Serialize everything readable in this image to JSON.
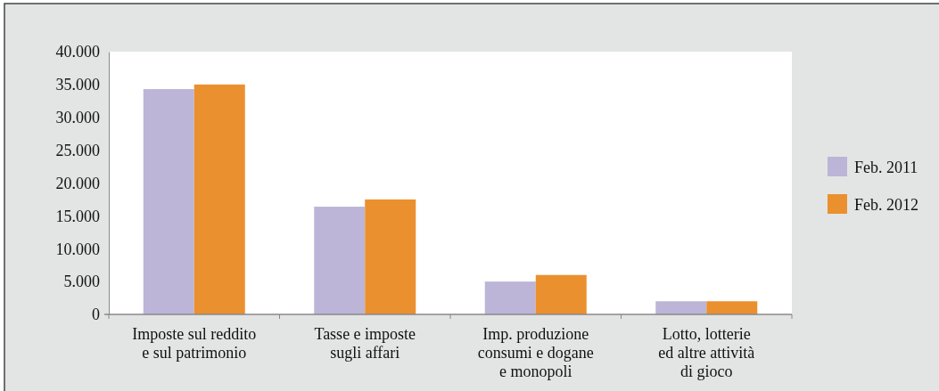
{
  "chart_data": {
    "type": "bar",
    "categories": [
      "Imposte sul reddito\ne sul patrimonio",
      "Tasse e imposte\nsugli affari",
      "Imp. produzione\nconsumi e dogane\ne monopoli",
      "Lotto, lotterie\ned altre attività\ndi gioco"
    ],
    "series": [
      {
        "name": "Feb. 2011",
        "color": "#bcb5d7",
        "values": [
          34300,
          16400,
          5000,
          2000
        ]
      },
      {
        "name": "Feb. 2012",
        "color": "#eb902e",
        "values": [
          35000,
          17500,
          6000,
          2000
        ]
      }
    ],
    "ylim": [
      0,
      40000
    ],
    "yticks": [
      {
        "value": 0,
        "label": "0"
      },
      {
        "value": 5000,
        "label": "5.000"
      },
      {
        "value": 10000,
        "label": "10.000"
      },
      {
        "value": 15000,
        "label": "15.000"
      },
      {
        "value": 20000,
        "label": "20.000"
      },
      {
        "value": 25000,
        "label": "25.000"
      },
      {
        "value": 30000,
        "label": "30.000"
      },
      {
        "value": 35000,
        "label": "35.000"
      },
      {
        "value": 40000,
        "label": "40.000"
      }
    ],
    "grid": false,
    "legend": "right"
  }
}
